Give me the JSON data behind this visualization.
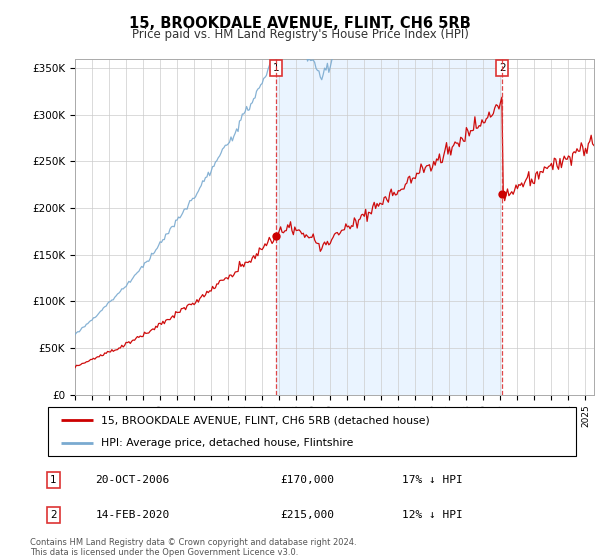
{
  "title": "15, BROOKDALE AVENUE, FLINT, CH6 5RB",
  "subtitle": "Price paid vs. HM Land Registry's House Price Index (HPI)",
  "ylim": [
    0,
    360000
  ],
  "xlim_start": 1995.0,
  "xlim_end": 2025.5,
  "transaction1_date": 2006.8,
  "transaction1_price": 170000,
  "transaction2_date": 2020.1,
  "transaction2_price": 215000,
  "legend_line1": "15, BROOKDALE AVENUE, FLINT, CH6 5RB (detached house)",
  "legend_line2": "HPI: Average price, detached house, Flintshire",
  "footnote": "Contains HM Land Registry data © Crown copyright and database right 2024.\nThis data is licensed under the Open Government Licence v3.0.",
  "hpi_color": "#7aaad0",
  "price_color": "#cc0000",
  "vline_color": "#dd3333",
  "shade_color": "#ddeeff",
  "background_color": "#ffffff",
  "grid_color": "#cccccc"
}
